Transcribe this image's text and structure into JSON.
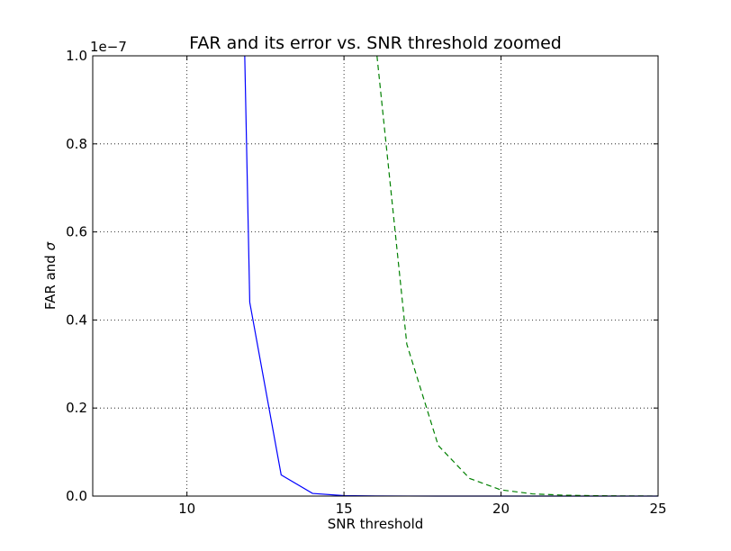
{
  "chart_data": {
    "type": "line",
    "title": "FAR and its error vs. SNR threshold zoomed",
    "xlabel": "SNR threshold",
    "ylabel_text": "FAR and ",
    "ylabel_symbol": "σ",
    "offset_text": "1e−7",
    "xlim": [
      7,
      25
    ],
    "ylim": [
      0,
      1.0
    ],
    "grid": true,
    "x_ticks": [
      10,
      15,
      20,
      25
    ],
    "x_tick_labels": [
      "10",
      "15",
      "20",
      "25"
    ],
    "y_ticks": [
      0.0,
      0.2,
      0.4,
      0.6,
      0.8,
      1.0
    ],
    "y_tick_labels": [
      "0.0",
      "0.2",
      "0.4",
      "0.6",
      "0.8",
      "1.0"
    ],
    "series": [
      {
        "color": "#0000ff",
        "style": "solid",
        "x": [
          11.84,
          12,
          13,
          14,
          15,
          16,
          17,
          18,
          19,
          20,
          21,
          22,
          23,
          24,
          25
        ],
        "y": [
          1.0,
          0.44,
          0.048,
          0.006,
          0.001,
          0.0002,
          0.0001,
          0,
          0,
          0,
          0,
          0,
          0,
          0,
          0
        ]
      },
      {
        "color": "#008000",
        "style": "dashed",
        "x": [
          16.05,
          17,
          18,
          19,
          20,
          21,
          22,
          23,
          24,
          25
        ],
        "y": [
          1.0,
          0.345,
          0.115,
          0.04,
          0.014,
          0.005,
          0.002,
          0.0008,
          0.0003,
          0.0001
        ]
      }
    ]
  }
}
